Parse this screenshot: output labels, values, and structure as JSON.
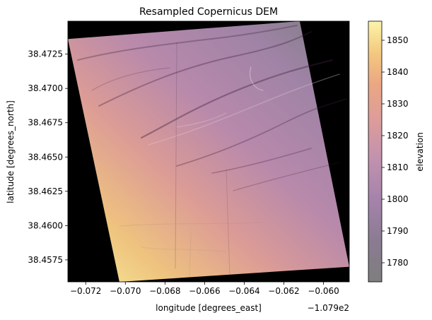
{
  "chart_data": {
    "type": "heatmap",
    "title": "Resampled Copernicus DEM",
    "xlabel": "longitude [degrees_east]",
    "ylabel": "latitude [degrees_north]",
    "x_offset_text": "−1.079e2",
    "xlim": [
      -0.0729,
      -0.0587
    ],
    "ylim": [
      38.4559,
      38.4749
    ],
    "x_ticks": [
      {
        "value": -0.072,
        "label": "−0.072"
      },
      {
        "value": -0.07,
        "label": "−0.070"
      },
      {
        "value": -0.068,
        "label": "−0.068"
      },
      {
        "value": -0.066,
        "label": "−0.066"
      },
      {
        "value": -0.064,
        "label": "−0.064"
      },
      {
        "value": -0.062,
        "label": "−0.062"
      },
      {
        "value": -0.06,
        "label": "−0.060"
      }
    ],
    "y_ticks": [
      {
        "value": 38.4575,
        "label": "38.4575"
      },
      {
        "value": 38.46,
        "label": "38.4600"
      },
      {
        "value": 38.4625,
        "label": "38.4625"
      },
      {
        "value": 38.465,
        "label": "38.4650"
      },
      {
        "value": 38.4675,
        "label": "38.4675"
      },
      {
        "value": 38.47,
        "label": "38.4700"
      },
      {
        "value": 38.4725,
        "label": "38.4725"
      }
    ],
    "no_data_color": "#000000",
    "data_extent_corners": [
      {
        "lon": -0.0729,
        "lat": 38.4736
      },
      {
        "lon": -0.0612,
        "lat": 38.4749
      },
      {
        "lon": -0.0587,
        "lat": 38.457
      },
      {
        "lon": -0.0703,
        "lat": 38.4559
      }
    ],
    "colorbar": {
      "label": "elevation",
      "colormap": "inferno-like (alpha blended over hillshade)",
      "range": [
        1774,
        1856
      ],
      "ticks": [
        1780,
        1790,
        1800,
        1810,
        1820,
        1830,
        1840,
        1850
      ],
      "colors": [
        "#7e7e7e",
        "#8a7a92",
        "#a683ac",
        "#c190b0",
        "#dc9a9c",
        "#eaa483",
        "#f3c27f",
        "#faf0a6"
      ]
    },
    "elevation_samples": [
      {
        "lon": -0.071,
        "lat": 38.457,
        "elevation": 1852
      },
      {
        "lon": -0.069,
        "lat": 38.46,
        "elevation": 1838
      },
      {
        "lon": -0.07,
        "lat": 38.466,
        "elevation": 1822
      },
      {
        "lon": -0.0705,
        "lat": 38.472,
        "elevation": 1806
      },
      {
        "lon": -0.065,
        "lat": 38.464,
        "elevation": 1812
      },
      {
        "lon": -0.064,
        "lat": 38.47,
        "elevation": 1796
      },
      {
        "lon": -0.062,
        "lat": 38.474,
        "elevation": 1782
      },
      {
        "lon": -0.06,
        "lat": 38.462,
        "elevation": 1800
      },
      {
        "lon": -0.06,
        "lat": 38.458,
        "elevation": 1815
      }
    ]
  }
}
